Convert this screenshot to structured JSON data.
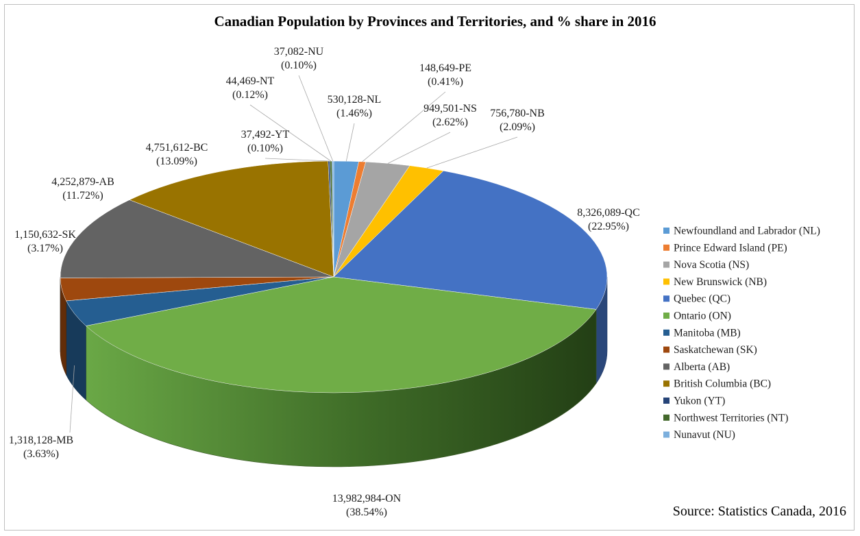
{
  "chart_data": {
    "type": "pie",
    "title": "Canadian Population by Provinces and Territories, and % share in 2016",
    "source": "Source: Statistics Canada, 2016",
    "legend_position": "right",
    "slices": [
      {
        "name": "Newfoundland and Labrador (NL)",
        "code": "NL",
        "value": 530128,
        "percent": 1.46,
        "value_label": "530,128-NL",
        "percent_label": "(1.46%)",
        "color": "#5b9bd5"
      },
      {
        "name": "Prince Edward Island (PE)",
        "code": "PE",
        "value": 148649,
        "percent": 0.41,
        "value_label": "148,649-PE",
        "percent_label": "(0.41%)",
        "color": "#ed7d31"
      },
      {
        "name": "Nova Scotia (NS)",
        "code": "NS",
        "value": 949501,
        "percent": 2.62,
        "value_label": "949,501-NS",
        "percent_label": "(2.62%)",
        "color": "#a5a5a5"
      },
      {
        "name": "New Brunswick (NB)",
        "code": "NB",
        "value": 756780,
        "percent": 2.09,
        "value_label": "756,780-NB",
        "percent_label": "(2.09%)",
        "color": "#ffc000"
      },
      {
        "name": "Quebec (QC)",
        "code": "QC",
        "value": 8326089,
        "percent": 22.95,
        "value_label": "8,326,089-QC",
        "percent_label": "(22.95%)",
        "color": "#4472c4"
      },
      {
        "name": "Ontario (ON)",
        "code": "ON",
        "value": 13982984,
        "percent": 38.54,
        "value_label": "13,982,984-ON",
        "percent_label": "(38.54%)",
        "color": "#70ad47"
      },
      {
        "name": "Manitoba (MB)",
        "code": "MB",
        "value": 1318128,
        "percent": 3.63,
        "value_label": "1,318,128-MB",
        "percent_label": "(3.63%)",
        "color": "#255e91"
      },
      {
        "name": "Saskatchewan (SK)",
        "code": "SK",
        "value": 1150632,
        "percent": 3.17,
        "value_label": "1,150,632-SK",
        "percent_label": "(3.17%)",
        "color": "#9e480e"
      },
      {
        "name": "Alberta (AB)",
        "code": "AB",
        "value": 4252879,
        "percent": 11.72,
        "value_label": "4,252,879-AB",
        "percent_label": "(11.72%)",
        "color": "#636363"
      },
      {
        "name": "British Columbia (BC)",
        "code": "BC",
        "value": 4751612,
        "percent": 13.09,
        "value_label": "4,751,612-BC",
        "percent_label": "(13.09%)",
        "color": "#997300"
      },
      {
        "name": "Yukon (YT)",
        "code": "YT",
        "value": 37492,
        "percent": 0.1,
        "value_label": "37,492-YT",
        "percent_label": "(0.10%)",
        "color": "#264478"
      },
      {
        "name": "Northwest Territories (NT)",
        "code": "NT",
        "value": 44469,
        "percent": 0.12,
        "value_label": "44,469-NT",
        "percent_label": "(0.12%)",
        "color": "#43682b"
      },
      {
        "name": "Nunavut (NU)",
        "code": "NU",
        "value": 37082,
        "percent": 0.1,
        "value_label": "37,082-NU",
        "percent_label": "(0.10%)",
        "color": "#7cafdd"
      }
    ]
  }
}
